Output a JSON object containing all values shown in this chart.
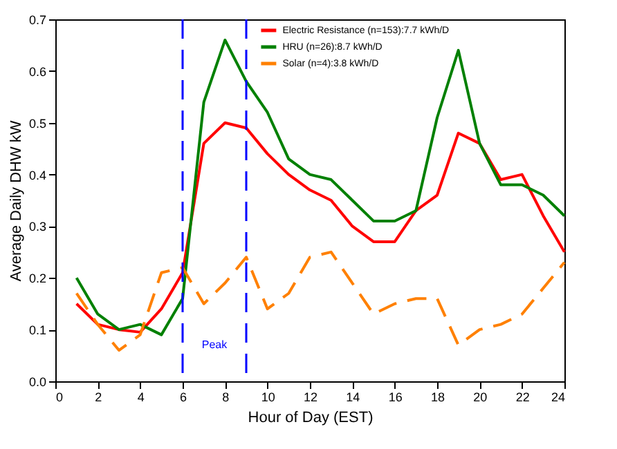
{
  "chart_data": {
    "type": "line",
    "xlabel": "Hour of Day (EST)",
    "ylabel": "Average Daily DHW kW",
    "x": [
      1,
      2,
      3,
      4,
      5,
      6,
      7,
      8,
      9,
      10,
      11,
      12,
      13,
      14,
      15,
      16,
      17,
      18,
      19,
      20,
      21,
      22,
      23,
      24
    ],
    "series": [
      {
        "name": "Electric Resistance (n=153):7.7 kWh/D",
        "color": "#ff0000",
        "line_style": "solid",
        "values": [
          0.15,
          0.11,
          0.1,
          0.095,
          0.14,
          0.21,
          0.46,
          0.5,
          0.49,
          0.44,
          0.4,
          0.37,
          0.35,
          0.3,
          0.27,
          0.27,
          0.33,
          0.36,
          0.48,
          0.46,
          0.39,
          0.4,
          0.32,
          0.25
        ]
      },
      {
        "name": "HRU (n=26):8.7 kWh/D",
        "color": "#008000",
        "line_style": "solid",
        "values": [
          0.2,
          0.13,
          0.1,
          0.11,
          0.09,
          0.16,
          0.54,
          0.66,
          0.58,
          0.52,
          0.43,
          0.4,
          0.39,
          0.35,
          0.31,
          0.31,
          0.33,
          0.51,
          0.64,
          0.46,
          0.38,
          0.38,
          0.36,
          0.32
        ]
      },
      {
        "name": "Solar (n=4):3.8 kWh/D",
        "color": "#ff8000",
        "line_style": "dashed",
        "values": [
          0.17,
          0.11,
          0.06,
          0.09,
          0.21,
          0.22,
          0.15,
          0.19,
          0.24,
          0.14,
          0.17,
          0.24,
          0.25,
          0.19,
          0.13,
          0.15,
          0.16,
          0.16,
          0.07,
          0.1,
          0.11,
          0.13,
          0.18,
          0.23
        ]
      }
    ],
    "xlim": [
      0,
      24
    ],
    "xticks": [
      0,
      2,
      4,
      6,
      8,
      10,
      12,
      14,
      16,
      18,
      20,
      22,
      24
    ],
    "ylim": [
      0,
      0.7
    ],
    "yticks": [
      {
        "value": 0,
        "label": "0.0"
      },
      {
        "value": 0.1,
        "label": "0.1"
      },
      {
        "value": 0.2,
        "label": "0.2"
      },
      {
        "value": 0.3,
        "label": "0.3"
      },
      {
        "value": 0.4,
        "label": "0.4"
      },
      {
        "value": 0.5,
        "label": "0.5"
      },
      {
        "value": 0.6,
        "label": "0.6"
      },
      {
        "value": 0.7,
        "label": "0.7"
      }
    ],
    "ref_lines": [
      {
        "axis": "x",
        "value": 6,
        "color": "#0000ff",
        "line_style": "dashed"
      },
      {
        "axis": "x",
        "value": 9,
        "color": "#0000ff",
        "line_style": "dashed"
      }
    ],
    "annotations": [
      "Peak"
    ],
    "grid": false,
    "legend": "top right",
    "marker": "none"
  }
}
